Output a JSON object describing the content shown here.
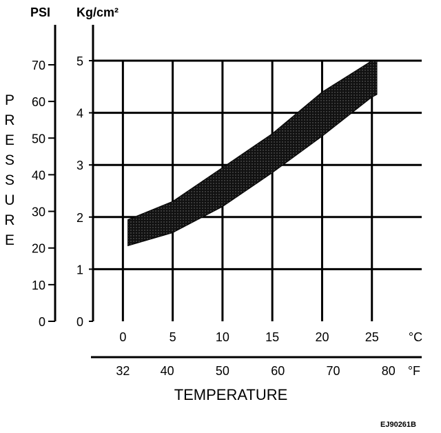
{
  "chart_data": {
    "type": "area",
    "title": "",
    "ylabel": "PRESSURE",
    "xlabel": "TEMPERATURE",
    "y_left_unit": "PSI",
    "y_right_unit": "Kg/cm²",
    "y_left_ticks": [
      "0",
      "10",
      "20",
      "30",
      "40",
      "50",
      "60",
      "70"
    ],
    "y_left_values": [
      0,
      10,
      20,
      30,
      40,
      50,
      60,
      70
    ],
    "y_right_ticks": [
      "0",
      "1",
      "2",
      "3",
      "4",
      "5"
    ],
    "y_right_values": [
      0,
      1,
      2,
      3,
      4,
      5
    ],
    "ylim_kgcm2": [
      0,
      5
    ],
    "x_c_ticks": [
      "0",
      "5",
      "10",
      "15",
      "20",
      "25"
    ],
    "x_c_values": [
      0,
      5,
      10,
      15,
      20,
      25
    ],
    "x_c_unit": "°C",
    "x_f_ticks": [
      "32",
      "40",
      "50",
      "60",
      "70",
      "80"
    ],
    "x_f_unit": "°F",
    "xlim_c": [
      -3,
      30
    ],
    "grid": true,
    "band": {
      "x_c": [
        0.5,
        5,
        10,
        15,
        20,
        25,
        25.5
      ],
      "lower_kgcm2": [
        1.45,
        1.7,
        2.2,
        2.85,
        3.55,
        4.3,
        4.35
      ],
      "upper_kgcm2": [
        1.95,
        2.3,
        2.95,
        3.6,
        4.4,
        5.0,
        5.0
      ]
    },
    "annotation": "EJ90261B"
  },
  "colors": {
    "band": "#1a1a1a",
    "grid": "#000000",
    "background": "#ffffff"
  }
}
